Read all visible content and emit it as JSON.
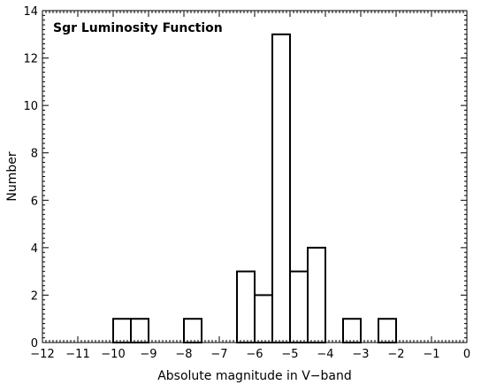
{
  "chart_data": {
    "type": "histogram",
    "title": "Sgr Luminosity Function",
    "xlabel": "Absolute magnitude in V−band",
    "ylabel": "Number",
    "xlim": [
      -12,
      0
    ],
    "ylim": [
      0,
      14
    ],
    "bin_width": 0.5,
    "x_ticks": [
      -12,
      -11,
      -10,
      -9,
      -8,
      -7,
      -6,
      -5,
      -4,
      -3,
      -2,
      -1,
      0
    ],
    "x_tick_labels": [
      "−12",
      "−11",
      "−10",
      "−9",
      "−8",
      "−7",
      "−6",
      "−5",
      "−4",
      "−3",
      "−2",
      "−1",
      "0"
    ],
    "y_ticks": [
      0,
      2,
      4,
      6,
      8,
      10,
      12,
      14
    ],
    "y_tick_labels": [
      "0",
      "2",
      "4",
      "6",
      "8",
      "10",
      "12",
      "14"
    ],
    "bins": [
      {
        "x0": -12.0,
        "x1": -11.5,
        "count": 0
      },
      {
        "x0": -11.5,
        "x1": -11.0,
        "count": 0
      },
      {
        "x0": -11.0,
        "x1": -10.5,
        "count": 0
      },
      {
        "x0": -10.5,
        "x1": -10.0,
        "count": 0
      },
      {
        "x0": -10.0,
        "x1": -9.5,
        "count": 1
      },
      {
        "x0": -9.5,
        "x1": -9.0,
        "count": 1
      },
      {
        "x0": -9.0,
        "x1": -8.5,
        "count": 0
      },
      {
        "x0": -8.5,
        "x1": -8.0,
        "count": 0
      },
      {
        "x0": -8.0,
        "x1": -7.5,
        "count": 1
      },
      {
        "x0": -7.5,
        "x1": -7.0,
        "count": 0
      },
      {
        "x0": -7.0,
        "x1": -6.5,
        "count": 0
      },
      {
        "x0": -6.5,
        "x1": -6.0,
        "count": 3
      },
      {
        "x0": -6.0,
        "x1": -5.5,
        "count": 2
      },
      {
        "x0": -5.5,
        "x1": -5.0,
        "count": 13
      },
      {
        "x0": -5.0,
        "x1": -4.5,
        "count": 3
      },
      {
        "x0": -4.5,
        "x1": -4.0,
        "count": 4
      },
      {
        "x0": -4.0,
        "x1": -3.5,
        "count": 0
      },
      {
        "x0": -3.5,
        "x1": -3.0,
        "count": 1
      },
      {
        "x0": -3.0,
        "x1": -2.5,
        "count": 0
      },
      {
        "x0": -2.5,
        "x1": -2.0,
        "count": 1
      },
      {
        "x0": -2.0,
        "x1": -1.5,
        "count": 0
      },
      {
        "x0": -1.5,
        "x1": -1.0,
        "count": 0
      },
      {
        "x0": -1.0,
        "x1": -0.5,
        "count": 0
      },
      {
        "x0": -0.5,
        "x1": 0.0,
        "count": 0
      }
    ],
    "grid": false,
    "line_color": "#000000"
  }
}
